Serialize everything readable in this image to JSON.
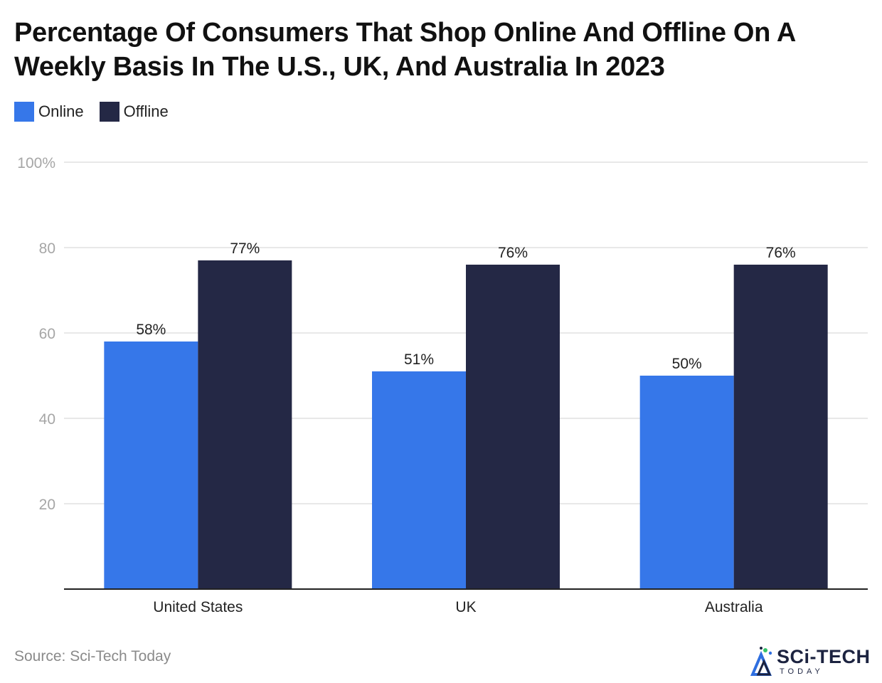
{
  "title": "Percentage Of Consumers That Shop Online And Offline On A Weekly Basis In The U.S., UK, And Australia In 2023",
  "source": "Source: Sci-Tech Today",
  "logo": {
    "main": "SCi-TECH",
    "sub": "TODAY"
  },
  "colors": {
    "online": "#3677e9",
    "offline": "#242845",
    "grid": "#e0e0e0",
    "axis_text": "#a6a6a6"
  },
  "chart_data": {
    "type": "bar",
    "categories": [
      "United States",
      "UK",
      "Australia"
    ],
    "series": [
      {
        "name": "Online",
        "values": [
          58,
          51,
          50
        ],
        "labels": [
          "58%",
          "51%",
          "50%"
        ]
      },
      {
        "name": "Offline",
        "values": [
          77,
          76,
          76
        ],
        "labels": [
          "77%",
          "76%",
          "76%"
        ]
      }
    ],
    "yticks": [
      20,
      40,
      60,
      80,
      100
    ],
    "ytick_labels": [
      "20",
      "40",
      "60",
      "80",
      "100%"
    ],
    "ylim": [
      0,
      100
    ],
    "grid": true,
    "legend": "top-left"
  }
}
